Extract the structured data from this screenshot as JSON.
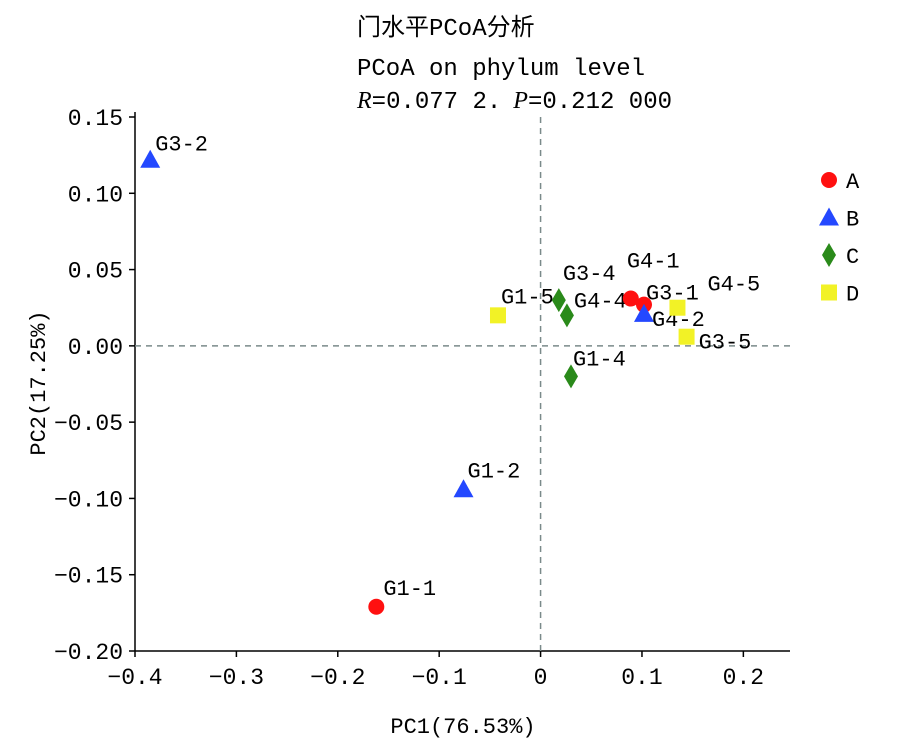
{
  "chart_data": {
    "type": "scatter",
    "title": "门水平PCoA分析",
    "subtitle": "PCoA on phylum level",
    "stats": {
      "r_label": "R",
      "r_value": "=0.077 2.",
      "p_label": "P",
      "p_value": "=0.212 000"
    },
    "xlabel": "PC1(76.53%)",
    "ylabel": "PC2(17.25%)",
    "xlim": [
      -0.4,
      0.246
    ],
    "ylim": [
      -0.2,
      0.15
    ],
    "xticks": [
      -0.4,
      -0.3,
      -0.2,
      -0.1,
      0,
      0.1,
      0.2
    ],
    "xtick_labels": [
      "−0.4",
      "−0.3",
      "−0.2",
      "−0.1",
      "0",
      "0.1",
      "0.2"
    ],
    "yticks": [
      0.15,
      0.1,
      0.05,
      0.0,
      -0.05,
      -0.1,
      -0.15,
      -0.2
    ],
    "ytick_labels": [
      "0.15",
      "0.10",
      "0.05",
      "0.00",
      "−0.05",
      "−0.10",
      "−0.15",
      "−0.20"
    ],
    "grid": false,
    "reference_lines": {
      "x": 0,
      "y": 0
    },
    "legend_position": "right",
    "groups": [
      {
        "name": "A",
        "marker": "circle",
        "color": "#ff1010"
      },
      {
        "name": "B",
        "marker": "triangle",
        "color": "#2448ff"
      },
      {
        "name": "C",
        "marker": "diamond",
        "color": "#2a8a1a"
      },
      {
        "name": "D",
        "marker": "square",
        "color": "#f2f226"
      }
    ],
    "points": [
      {
        "label": "G3-2",
        "group": "B",
        "x": -0.385,
        "y": 0.122
      },
      {
        "label": "G1-2",
        "group": "B",
        "x": -0.076,
        "y": -0.094
      },
      {
        "label": "G1-1",
        "group": "A",
        "x": -0.162,
        "y": -0.171
      },
      {
        "label": "G1-5",
        "group": "D",
        "x": -0.042,
        "y": 0.02
      },
      {
        "label": "G3-4",
        "group": "C",
        "x": 0.018,
        "y": 0.03
      },
      {
        "label": "G4-4",
        "group": "C",
        "x": 0.026,
        "y": 0.02
      },
      {
        "label": "G1-4",
        "group": "C",
        "x": 0.03,
        "y": -0.02
      },
      {
        "label": "G4-1",
        "group": "A",
        "x": 0.089,
        "y": 0.031
      },
      {
        "label": "G3-1",
        "group": "A",
        "x": 0.102,
        "y": 0.027
      },
      {
        "label": "G4-2",
        "group": "B",
        "x": 0.102,
        "y": 0.021
      },
      {
        "label": "G4-5",
        "group": "D",
        "x": 0.135,
        "y": 0.025
      },
      {
        "label": "G3-5",
        "group": "D",
        "x": 0.144,
        "y": 0.006
      }
    ]
  }
}
